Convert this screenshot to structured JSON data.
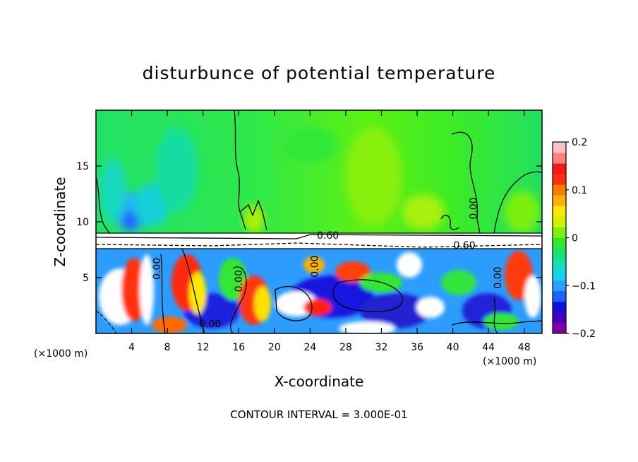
{
  "chart_data": {
    "type": "heatmap",
    "title": "disturbunce of potential temperature",
    "xlabel": "X-coordinate",
    "ylabel": "Z-coordinate",
    "x_unit_left": "(×1000 m)",
    "x_unit_right": "(×1000 m)",
    "xlim": [
      0,
      50
    ],
    "ylim": [
      0,
      20
    ],
    "x_ticks": [
      4,
      8,
      12,
      16,
      20,
      24,
      28,
      32,
      36,
      40,
      44,
      48
    ],
    "y_ticks": [
      5,
      10,
      15
    ],
    "colorbar": {
      "range": [
        -0.2,
        0.2
      ],
      "ticks": [
        {
          "value": 0.2,
          "label": "0.2"
        },
        {
          "value": 0.1,
          "label": "0.1"
        },
        {
          "value": 0,
          "label": "0"
        },
        {
          "value": -0.1,
          "label": "−0.1"
        },
        {
          "value": -0.2,
          "label": "−0.2"
        }
      ],
      "colors": [
        "#7f00a8",
        "#4400c0",
        "#1010e0",
        "#1e60ff",
        "#28a0ff",
        "#14d2ea",
        "#10e0b4",
        "#18e078",
        "#30e830",
        "#80f010",
        "#d0f000",
        "#ffe800",
        "#ffb000",
        "#ff7a00",
        "#ff3010",
        "#f01818",
        "#ff8080",
        "#ffc0c0"
      ]
    },
    "contour_interval_text": "CONTOUR INTERVAL = 3.000E-01",
    "contour_labels": [
      {
        "text": "0.60",
        "x": 26.0,
        "z": 8.8
      },
      {
        "text": "0.60",
        "x": 41.3,
        "z": 7.9
      },
      {
        "text": "0.00",
        "x": 42.3,
        "z": 11.2
      },
      {
        "text": "0.00",
        "x": 6.8,
        "z": 5.8
      },
      {
        "text": "0.00",
        "x": 16.0,
        "z": 4.7
      },
      {
        "text": "0.00",
        "x": 24.5,
        "z": 6.0
      },
      {
        "text": "0.00",
        "x": 45.0,
        "z": 5.0
      },
      {
        "text": "0.00",
        "x": 12.8,
        "z": 0.9
      }
    ]
  }
}
